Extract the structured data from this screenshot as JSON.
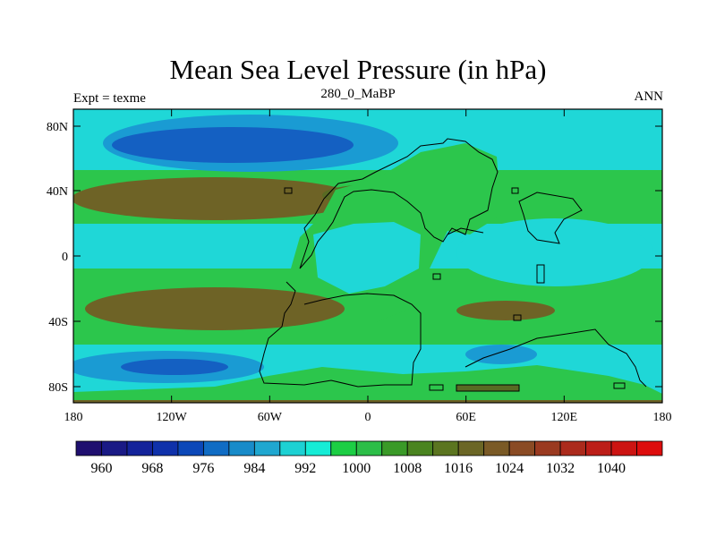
{
  "title": "Mean Sea Level Pressure (in hPa)",
  "subtitle": "280_0_MaBP",
  "left_label": "Expt = texme",
  "right_label": "ANN",
  "lat_ticks": [
    "80N",
    "40N",
    "0",
    "40S",
    "80S"
  ],
  "lon_ticks": [
    "180",
    "120W",
    "60W",
    "0",
    "60E",
    "120E",
    "180"
  ],
  "colorbar": {
    "labels": [
      "960",
      "968",
      "976",
      "984",
      "992",
      "1000",
      "1008",
      "1016",
      "1024",
      "1032",
      "1040"
    ],
    "colors": [
      "#1f0f6f",
      "#1a1a85",
      "#14239a",
      "#0f31aa",
      "#0c48b8",
      "#106cc4",
      "#188bc9",
      "#1fa7d0",
      "#1dd1d3",
      "#16ecd6",
      "#1cce44",
      "#2cbe48",
      "#3a9a28",
      "#4a8420",
      "#5b7520",
      "#6b6625",
      "#7a5a26",
      "#8a4b24",
      "#9a3a20",
      "#ab2a1c",
      "#bc1e18",
      "#cc1412",
      "#dd0d0d"
    ]
  },
  "map_colors": {
    "ocean_mid": "#1fd7d7",
    "land_green": "#2cc64c",
    "deep_blue": "#1460c2",
    "mid_blue": "#1a9bd3",
    "brown": "#6e6326",
    "dark_olive": "#586a23"
  }
}
